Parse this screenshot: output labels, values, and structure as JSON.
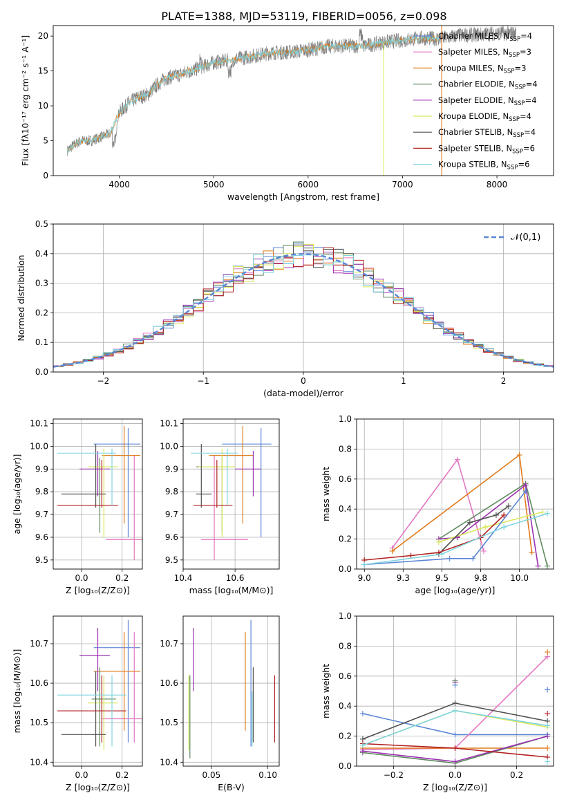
{
  "title": "PLATE=1388, MJD=53119, FIBERID=0056, z=0.098",
  "models": [
    {
      "name": "Chabrier MILES",
      "nssp": "4",
      "color": "#5b86d6"
    },
    {
      "name": "Salpeter MILES",
      "nssp": "3",
      "color": "#e377c2"
    },
    {
      "name": "Kroupa MILES",
      "nssp": "3",
      "color": "#e07b1c"
    },
    {
      "name": "Chabrier ELODIE",
      "nssp": "4",
      "color": "#5f8a5f"
    },
    {
      "name": "Salpeter ELODIE",
      "nssp": "4",
      "color": "#9b30b0"
    },
    {
      "name": "Kroupa ELODIE",
      "nssp": "4",
      "color": "#d9e85a"
    },
    {
      "name": "Chabrier STELIB",
      "nssp": "4",
      "color": "#505050"
    },
    {
      "name": "Salpeter STELIB",
      "nssp": "6",
      "color": "#b22020"
    },
    {
      "name": "Kroupa STELIB",
      "nssp": "6",
      "color": "#7fd4e0"
    }
  ],
  "legend_ssp_prefix": "N",
  "legend_ssp_sub": "SSP",
  "legend_ssp_eq": "=",
  "chart_data": [
    {
      "id": "spectrum",
      "type": "line",
      "xlabel": "wavelength [Angstrom, rest frame]",
      "ylabel": "Flux [fλ10⁻¹⁷ erg cm⁻² s⁻¹ A⁻¹]",
      "xlim": [
        3300,
        8600
      ],
      "ylim": [
        0,
        21.5
      ],
      "xticks": [
        4000,
        5000,
        6000,
        7000,
        8000
      ],
      "yticks": [
        0,
        5,
        10,
        15,
        20
      ],
      "data_color": "#808080",
      "continuum": {
        "x": [
          3450,
          3500,
          3600,
          3700,
          3800,
          3900,
          4000,
          4100,
          4200,
          4300,
          4400,
          4500,
          4600,
          4800,
          5000,
          5200,
          5400,
          5600,
          5800,
          6000,
          6200,
          6400,
          6600,
          6800,
          7000,
          7200,
          7400,
          7600,
          7800,
          8000,
          8200
        ],
        "y": [
          3.6,
          4.2,
          5.0,
          5.0,
          5.5,
          6.0,
          9.0,
          10.4,
          11.2,
          11.6,
          13.0,
          14.0,
          14.3,
          15.2,
          16.2,
          16.6,
          17.1,
          17.6,
          17.7,
          18.0,
          18.5,
          18.6,
          18.6,
          19.1,
          19.4,
          19.7,
          19.6,
          20.1,
          20.2,
          20.4,
          20.4
        ]
      },
      "spike_x": 7415,
      "dip_x": 6800,
      "model_colors": [
        "#e07b1c",
        "#7fd4e0"
      ]
    },
    {
      "id": "residuals",
      "type": "step",
      "xlabel": "(data-model)/error",
      "ylabel": "Normed distribution",
      "xlim": [
        -2.5,
        2.5
      ],
      "ylim": [
        0,
        0.5
      ],
      "xticks": [
        -2,
        -1,
        0,
        1,
        2
      ],
      "yticks": [
        0.0,
        0.1,
        0.2,
        0.3,
        0.4,
        0.5
      ],
      "legend": "𝒩(0,1)",
      "gauss_color": "#5b86d6",
      "bin_width": 0.1,
      "n_hist": 9
    },
    {
      "id": "age-vs-Z",
      "type": "errorbar",
      "xlabel": "Z [log₁₀(Z/Z⊙)]",
      "ylabel": "age  [log₁₀(age/yr)]",
      "xlim": [
        -0.14,
        0.3
      ],
      "ylim": [
        9.46,
        10.12
      ],
      "xticks": [
        0.0,
        0.2
      ],
      "yticks": [
        9.5,
        9.6,
        9.7,
        9.8,
        9.9,
        10.0,
        10.1
      ],
      "points": [
        {
          "m": 0,
          "x": 0.23,
          "xe": [
            0.06,
            0.29
          ],
          "y": 10.01,
          "ye": [
            9.6,
            10.08
          ]
        },
        {
          "m": 1,
          "x": 0.26,
          "xe": [
            0.12,
            0.3
          ],
          "y": 9.59,
          "ye": [
            9.5,
            9.96
          ]
        },
        {
          "m": 2,
          "x": 0.21,
          "xe": [
            0.1,
            0.29
          ],
          "y": 9.96,
          "ye": [
            9.66,
            10.09
          ]
        },
        {
          "m": 3,
          "x": 0.09,
          "xe": [
            0.05,
            0.17
          ],
          "y": 9.91,
          "ye": [
            9.62,
            9.95
          ]
        },
        {
          "m": 4,
          "x": 0.08,
          "xe": [
            -0.01,
            0.14
          ],
          "y": 9.9,
          "ye": [
            9.78,
            9.98
          ]
        },
        {
          "m": 5,
          "x": 0.11,
          "xe": [
            0.03,
            0.18
          ],
          "y": 9.91,
          "ye": [
            9.6,
            9.99
          ]
        },
        {
          "m": 6,
          "x": 0.07,
          "xe": [
            -0.1,
            0.12
          ],
          "y": 9.79,
          "ye": [
            9.73,
            10.01
          ]
        },
        {
          "m": 7,
          "x": 0.1,
          "xe": [
            -0.12,
            0.18
          ],
          "y": 9.74,
          "ye": [
            9.73,
            9.94
          ]
        },
        {
          "m": 8,
          "x": 0.15,
          "xe": [
            -0.12,
            0.17
          ],
          "y": 9.97,
          "ye": [
            9.74,
            9.99
          ]
        }
      ]
    },
    {
      "id": "age-vs-mass",
      "type": "errorbar",
      "xlabel": "mass [log₁₀(M/M⊙)]",
      "xlim": [
        10.4,
        10.77
      ],
      "ylim": [
        9.46,
        10.12
      ],
      "xticks": [
        10.4,
        10.6
      ],
      "yticks": [
        9.5,
        9.6,
        9.7,
        9.8,
        9.9,
        10.0,
        10.1
      ],
      "points": [
        {
          "m": 0,
          "x": 10.7,
          "xe": [
            10.55,
            10.74
          ],
          "y": 10.01,
          "ye": [
            9.6,
            10.08
          ]
        },
        {
          "m": 1,
          "x": 10.52,
          "xe": [
            10.47,
            10.65
          ],
          "y": 9.59,
          "ye": [
            9.5,
            9.96
          ]
        },
        {
          "m": 2,
          "x": 10.63,
          "xe": [
            10.5,
            10.67
          ],
          "y": 9.96,
          "ye": [
            9.66,
            10.09
          ]
        },
        {
          "m": 3,
          "x": 10.55,
          "xe": [
            10.45,
            10.6
          ],
          "y": 9.91,
          "ye": [
            9.62,
            9.95
          ]
        },
        {
          "m": 4,
          "x": 10.67,
          "xe": [
            10.6,
            10.7
          ],
          "y": 9.9,
          "ye": [
            9.78,
            9.98
          ]
        },
        {
          "m": 5,
          "x": 10.55,
          "xe": [
            10.46,
            10.6
          ],
          "y": 9.91,
          "ye": [
            9.6,
            9.99
          ]
        },
        {
          "m": 6,
          "x": 10.47,
          "xe": [
            10.45,
            10.51
          ],
          "y": 9.79,
          "ye": [
            9.73,
            10.01
          ]
        },
        {
          "m": 7,
          "x": 10.53,
          "xe": [
            10.44,
            10.59
          ],
          "y": 9.74,
          "ye": [
            9.73,
            9.94
          ]
        },
        {
          "m": 8,
          "x": 10.57,
          "xe": [
            10.43,
            10.61
          ],
          "y": 9.97,
          "ye": [
            9.74,
            9.99
          ]
        }
      ]
    },
    {
      "id": "massweight-vs-age",
      "type": "line",
      "xlabel": "age  [log₁₀(age/yr)]",
      "ylabel": "mass weight",
      "xlim": [
        8.95,
        10.22
      ],
      "ylim": [
        0,
        1
      ],
      "xticks": [
        9.0,
        9.25,
        9.5,
        9.75,
        10.0
      ],
      "yticks": [
        0.0,
        0.2,
        0.4,
        0.6,
        0.8,
        1.0
      ],
      "series": [
        {
          "m": 1,
          "x": [
            9.18,
            9.6,
            9.77
          ],
          "y": [
            0.14,
            0.73,
            0.12
          ]
        },
        {
          "m": 2,
          "x": [
            9.18,
            10.0,
            10.08
          ],
          "y": [
            0.12,
            0.76,
            0.11
          ]
        },
        {
          "m": 3,
          "x": [
            9.48,
            10.04,
            10.18
          ],
          "y": [
            0.2,
            0.57,
            0.02
          ]
        },
        {
          "m": 4,
          "x": [
            9.48,
            9.6,
            10.04,
            10.12
          ],
          "y": [
            0.2,
            0.21,
            0.56,
            0.02
          ]
        },
        {
          "m": 5,
          "x": [
            9.48,
            9.78,
            10.15
          ],
          "y": [
            0.18,
            0.28,
            0.38
          ]
        },
        {
          "m": 6,
          "x": [
            9.48,
            9.68,
            9.85,
            9.93
          ],
          "y": [
            0.1,
            0.31,
            0.36,
            0.42
          ]
        },
        {
          "m": 0,
          "x": [
            9.0,
            9.55,
            9.7,
            10.04
          ],
          "y": [
            0.03,
            0.07,
            0.07,
            0.52
          ]
        },
        {
          "m": 7,
          "x": [
            9.0,
            9.3,
            9.48,
            9.75,
            9.9
          ],
          "y": [
            0.06,
            0.09,
            0.11,
            0.21,
            0.36
          ]
        },
        {
          "m": 8,
          "x": [
            9.0,
            9.5,
            9.9,
            10.18
          ],
          "y": [
            0.03,
            0.1,
            0.28,
            0.37
          ]
        }
      ]
    },
    {
      "id": "mass-vs-Z",
      "type": "errorbar",
      "xlabel": "Z [log₁₀(Z/Z⊙)]",
      "ylabel": "mass [log₁₀(M/M⊙)]",
      "xlim": [
        -0.14,
        0.3
      ],
      "ylim": [
        10.39,
        10.77
      ],
      "xticks": [
        0.0,
        0.2
      ],
      "yticks": [
        10.4,
        10.5,
        10.6,
        10.7
      ],
      "points": [
        {
          "m": 0,
          "x": 0.23,
          "xe": [
            0.06,
            0.29
          ],
          "y": 10.69,
          "ye": [
            10.45,
            10.76
          ]
        },
        {
          "m": 1,
          "x": 0.26,
          "xe": [
            0.1,
            0.3
          ],
          "y": 10.51,
          "ye": [
            10.45,
            10.73
          ]
        },
        {
          "m": 2,
          "x": 0.21,
          "xe": [
            0.06,
            0.29
          ],
          "y": 10.63,
          "ye": [
            10.48,
            10.73
          ]
        },
        {
          "m": 3,
          "x": 0.09,
          "xe": [
            0.05,
            0.17
          ],
          "y": 10.56,
          "ye": [
            10.44,
            10.64
          ]
        },
        {
          "m": 4,
          "x": 0.08,
          "xe": [
            -0.01,
            0.14
          ],
          "y": 10.67,
          "ye": [
            10.58,
            10.74
          ]
        },
        {
          "m": 5,
          "x": 0.11,
          "xe": [
            0.03,
            0.18
          ],
          "y": 10.55,
          "ye": [
            10.43,
            10.62
          ]
        },
        {
          "m": 6,
          "x": 0.07,
          "xe": [
            -0.1,
            0.12
          ],
          "y": 10.47,
          "ye": [
            10.44,
            10.63
          ]
        },
        {
          "m": 7,
          "x": 0.1,
          "xe": [
            -0.12,
            0.22
          ],
          "y": 10.53,
          "ye": [
            10.45,
            10.62
          ]
        },
        {
          "m": 8,
          "x": 0.15,
          "xe": [
            -0.12,
            0.22
          ],
          "y": 10.57,
          "ye": [
            10.44,
            10.62
          ]
        }
      ]
    },
    {
      "id": "mass-vs-EBV",
      "type": "errorbar",
      "xlabel": "E(B-V)",
      "xlim": [
        0.025,
        0.11
      ],
      "ylim": [
        10.39,
        10.77
      ],
      "xticks": [
        0.05,
        0.1
      ],
      "yticks": [
        10.4,
        10.5,
        10.6,
        10.7
      ],
      "points": [
        {
          "m": 0,
          "x": 0.085,
          "ye": [
            10.44,
            10.76
          ]
        },
        {
          "m": 2,
          "x": 0.08,
          "ye": [
            10.48,
            10.73
          ]
        },
        {
          "m": 3,
          "x": 0.031,
          "ye": [
            10.41,
            10.62
          ]
        },
        {
          "m": 4,
          "x": 0.034,
          "ye": [
            10.58,
            10.74
          ]
        },
        {
          "m": 5,
          "x": 0.03,
          "ye": [
            10.43,
            10.62
          ]
        },
        {
          "m": 6,
          "x": 0.087,
          "ye": [
            10.45,
            10.64
          ]
        },
        {
          "m": 7,
          "x": 0.106,
          "ye": [
            10.45,
            10.62
          ]
        },
        {
          "m": 8,
          "x": 0.086,
          "ye": [
            10.44,
            10.58
          ]
        }
      ]
    },
    {
      "id": "massweight-vs-Z",
      "type": "line",
      "xlabel": "Z [log₁₀(Z/Z⊙)]",
      "ylabel": "mass weight",
      "xlim": [
        -0.32,
        0.32
      ],
      "ylim": [
        0,
        1
      ],
      "xticks": [
        -0.2,
        0.0,
        0.2
      ],
      "yticks": [
        0.0,
        0.2,
        0.4,
        0.6,
        0.8,
        1.0
      ],
      "series": [
        {
          "m": 0,
          "x": [
            -0.3,
            0.0,
            0.3
          ],
          "y": [
            0.35,
            0.21,
            0.21
          ]
        },
        {
          "m": 1,
          "x": [
            -0.3,
            0.0,
            0.3
          ],
          "y": [
            0.11,
            0.12,
            0.73
          ]
        },
        {
          "m": 2,
          "x": [
            -0.3,
            0.0,
            0.3
          ],
          "y": [
            0.12,
            0.12,
            0.12
          ]
        },
        {
          "m": 3,
          "x": [
            -0.3,
            0.0,
            0.3
          ],
          "y": [
            0.09,
            0.02,
            0.2
          ]
        },
        {
          "m": 4,
          "x": [
            -0.3,
            0.0,
            0.3
          ],
          "y": [
            0.1,
            0.03,
            0.2
          ]
        },
        {
          "m": 5,
          "x": [
            -0.3,
            0.0,
            0.3
          ],
          "y": [
            0.14,
            0.37,
            0.26
          ]
        },
        {
          "m": 6,
          "x": [
            -0.3,
            0.0,
            0.3
          ],
          "y": [
            0.18,
            0.42,
            0.3
          ]
        },
        {
          "m": 7,
          "x": [
            -0.3,
            0.0,
            0.3
          ],
          "y": [
            0.15,
            0.12,
            0.06
          ]
        },
        {
          "m": 8,
          "x": [
            -0.3,
            0.0,
            0.3
          ],
          "y": [
            0.14,
            0.37,
            0.27
          ]
        }
      ],
      "extra_marks": [
        {
          "m": 4,
          "x": 0.0,
          "y": 0.56
        },
        {
          "m": 0,
          "x": 0.0,
          "y": 0.54
        },
        {
          "m": 3,
          "x": 0.0,
          "y": 0.57
        },
        {
          "m": 2,
          "x": 0.3,
          "y": 0.76
        },
        {
          "m": 0,
          "x": 0.3,
          "y": 0.51
        },
        {
          "m": 7,
          "x": 0.3,
          "y": 0.35
        },
        {
          "m": 8,
          "x": 0.3,
          "y": 0.03
        }
      ]
    }
  ]
}
